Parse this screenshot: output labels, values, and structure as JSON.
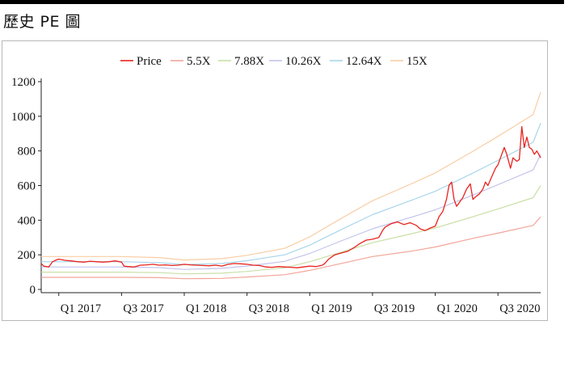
{
  "page": {
    "title": "歷史 PE 圖"
  },
  "colors": {
    "price": "#e8231e",
    "pe_5_5x": "#f2a59a",
    "pe_7_88x": "#c9dfa6",
    "pe_10_26x": "#c3c3ec",
    "pe_12_64x": "#a9d6ea",
    "pe_15x": "#f9cda3"
  },
  "chart_data": {
    "type": "line",
    "ylim": [
      0,
      1200
    ],
    "yticks": [
      0,
      200,
      400,
      600,
      800,
      1000,
      1200
    ],
    "grid": false,
    "legend_position": "top",
    "x_tick_labels": [
      "Q1 2017",
      "Q3 2017",
      "Q1 2018",
      "Q3 2018",
      "Q1 2019",
      "Q3 2019",
      "Q1 2020",
      "Q3 2020"
    ],
    "x_tick_positions": [
      2017.0,
      2017.5,
      2018.0,
      2018.5,
      2019.0,
      2019.5,
      2020.0,
      2020.5
    ],
    "x_range": [
      2016.86,
      2020.84
    ],
    "series": [
      {
        "name": "Price",
        "color_key": "price",
        "x": [
          2016.86,
          2016.88,
          2016.92,
          2016.95,
          2016.98,
          2017.0,
          2017.05,
          2017.1,
          2017.15,
          2017.2,
          2017.25,
          2017.3,
          2017.35,
          2017.4,
          2017.45,
          2017.5,
          2017.52,
          2017.55,
          2017.6,
          2017.65,
          2017.7,
          2017.75,
          2017.8,
          2017.85,
          2017.9,
          2017.95,
          2018.0,
          2018.05,
          2018.1,
          2018.15,
          2018.2,
          2018.25,
          2018.3,
          2018.35,
          2018.4,
          2018.45,
          2018.5,
          2018.55,
          2018.6,
          2018.65,
          2018.7,
          2018.75,
          2018.8,
          2018.85,
          2018.9,
          2018.95,
          2019.0,
          2019.05,
          2019.1,
          2019.12,
          2019.15,
          2019.2,
          2019.25,
          2019.3,
          2019.35,
          2019.4,
          2019.45,
          2019.5,
          2019.55,
          2019.58,
          2019.6,
          2019.65,
          2019.7,
          2019.75,
          2019.8,
          2019.85,
          2019.88,
          2019.92,
          2019.96,
          2020.0,
          2020.03,
          2020.06,
          2020.09,
          2020.11,
          2020.13,
          2020.15,
          2020.17,
          2020.2,
          2020.22,
          2020.25,
          2020.28,
          2020.3,
          2020.33,
          2020.35,
          2020.38,
          2020.4,
          2020.42,
          2020.45,
          2020.48,
          2020.5,
          2020.52,
          2020.55,
          2020.57,
          2020.6,
          2020.62,
          2020.65,
          2020.67,
          2020.69,
          2020.71,
          2020.73,
          2020.75,
          2020.77,
          2020.79,
          2020.81,
          2020.84
        ],
        "y": [
          150,
          135,
          130,
          160,
          170,
          175,
          168,
          165,
          160,
          158,
          163,
          160,
          158,
          160,
          165,
          158,
          135,
          132,
          130,
          140,
          142,
          145,
          140,
          142,
          138,
          140,
          145,
          142,
          140,
          138,
          137,
          140,
          135,
          145,
          150,
          148,
          145,
          140,
          138,
          130,
          128,
          132,
          130,
          128,
          125,
          130,
          135,
          132,
          140,
          150,
          175,
          200,
          210,
          220,
          240,
          265,
          285,
          290,
          300,
          340,
          360,
          380,
          390,
          375,
          385,
          370,
          350,
          340,
          355,
          365,
          420,
          450,
          520,
          600,
          620,
          520,
          480,
          510,
          530,
          580,
          610,
          520,
          540,
          550,
          580,
          620,
          600,
          650,
          700,
          720,
          760,
          820,
          780,
          700,
          760,
          740,
          750,
          940,
          820,
          880,
          820,
          810,
          780,
          800,
          760
        ]
      },
      {
        "name": "5.5X",
        "color_key": "pe_5_5x",
        "x": [
          2016.86,
          2017.3,
          2017.5,
          2017.8,
          2018.0,
          2018.3,
          2018.5,
          2018.8,
          2019.0,
          2019.25,
          2019.5,
          2019.8,
          2020.0,
          2020.3,
          2020.5,
          2020.78,
          2020.84
        ],
        "y": [
          70,
          70,
          70,
          68,
          62,
          64,
          72,
          85,
          110,
          150,
          190,
          220,
          245,
          295,
          325,
          370,
          420
        ]
      },
      {
        "name": "7.88X",
        "color_key": "pe_7_88x",
        "x": [
          2016.86,
          2017.3,
          2017.5,
          2017.8,
          2018.0,
          2018.3,
          2018.5,
          2018.8,
          2019.0,
          2019.25,
          2019.5,
          2019.8,
          2020.0,
          2020.3,
          2020.5,
          2020.78,
          2020.84
        ],
        "y": [
          100,
          100,
          100,
          97,
          90,
          94,
          104,
          125,
          160,
          215,
          270,
          320,
          355,
          420,
          465,
          530,
          600
        ]
      },
      {
        "name": "10.26X",
        "color_key": "pe_10_26x",
        "x": [
          2016.86,
          2017.3,
          2017.5,
          2017.8,
          2018.0,
          2018.3,
          2018.5,
          2018.8,
          2019.0,
          2019.25,
          2019.5,
          2019.8,
          2020.0,
          2020.3,
          2020.5,
          2020.78,
          2020.84
        ],
        "y": [
          130,
          130,
          130,
          126,
          116,
          122,
          135,
          162,
          208,
          280,
          350,
          415,
          460,
          545,
          605,
          690,
          780
        ]
      },
      {
        "name": "12.64X",
        "color_key": "pe_12_64x",
        "x": [
          2016.86,
          2017.3,
          2017.5,
          2017.8,
          2018.0,
          2018.3,
          2018.5,
          2018.8,
          2019.0,
          2019.25,
          2019.5,
          2019.8,
          2020.0,
          2020.3,
          2020.5,
          2020.78,
          2020.84
        ],
        "y": [
          160,
          160,
          160,
          155,
          143,
          150,
          166,
          200,
          256,
          345,
          432,
          512,
          567,
          672,
          745,
          850,
          960
        ]
      },
      {
        "name": "15X",
        "color_key": "pe_15x",
        "x": [
          2016.86,
          2017.3,
          2017.5,
          2017.8,
          2018.0,
          2018.3,
          2018.5,
          2018.8,
          2019.0,
          2019.25,
          2019.5,
          2019.8,
          2020.0,
          2020.3,
          2020.5,
          2020.78,
          2020.84
        ],
        "y": [
          190,
          190,
          190,
          184,
          170,
          178,
          197,
          237,
          304,
          410,
          512,
          607,
          673,
          798,
          884,
          1010,
          1140
        ]
      }
    ]
  }
}
